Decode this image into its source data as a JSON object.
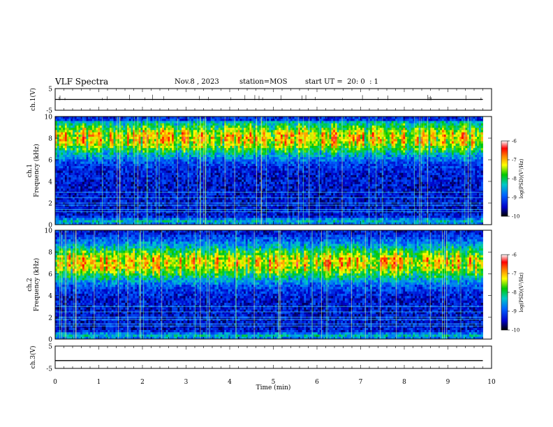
{
  "header": {
    "title": "VLF Spectra",
    "date": "Nov.8 , 2023",
    "station": "station=MOS",
    "start_ut": "start UT =  20: 0  : 1"
  },
  "chart_data": [
    {
      "type": "line",
      "ylabel": "ch.1(V)",
      "ylim": [
        -5,
        5
      ],
      "yticks": [
        "5",
        "-5"
      ],
      "xlim": [
        0,
        10
      ],
      "series": [
        {
          "values_description_free": true,
          "x": [
            0,
            9.8
          ],
          "values": [
            0,
            0
          ]
        }
      ]
    },
    {
      "type": "heatmap",
      "ylabel": "ch.1\nFrequency (kHz)",
      "ylim": [
        0,
        10
      ],
      "yticks": [
        "0",
        "2",
        "4",
        "6",
        "8",
        "10"
      ],
      "xlim": [
        0,
        10
      ],
      "data_extent_min": 9.8,
      "colorbar": {
        "label": "log(PSD)(V²/Hz)",
        "range": [
          -10,
          -6
        ],
        "ticks": [
          "-6",
          "-7",
          "-8",
          "-9",
          "-10"
        ]
      }
    },
    {
      "type": "heatmap",
      "ylabel": "ch.2\nFrequency (kHz)",
      "ylim": [
        0,
        10
      ],
      "yticks": [
        "0",
        "2",
        "4",
        "6",
        "8",
        "10"
      ],
      "xlim": [
        0,
        10
      ],
      "data_extent_min": 9.8,
      "colorbar": {
        "label": "log(PSD)(V²/Hz)",
        "range": [
          -10,
          -6
        ],
        "ticks": [
          "-6",
          "-7",
          "-8",
          "-9",
          "-10"
        ]
      }
    },
    {
      "type": "line",
      "ylabel": "ch.3(V)",
      "ylim": [
        -5,
        5
      ],
      "yticks": [
        "5",
        "-5"
      ],
      "xlim": [
        0,
        10
      ],
      "series": [
        {
          "x": [
            0,
            9.8
          ],
          "values": [
            -1.5,
            -1.5
          ]
        }
      ]
    }
  ],
  "x_axis": {
    "label": "Time (min)",
    "ticks": [
      "0",
      "1",
      "2",
      "3",
      "4",
      "5",
      "6",
      "7",
      "8",
      "9",
      "10"
    ]
  }
}
